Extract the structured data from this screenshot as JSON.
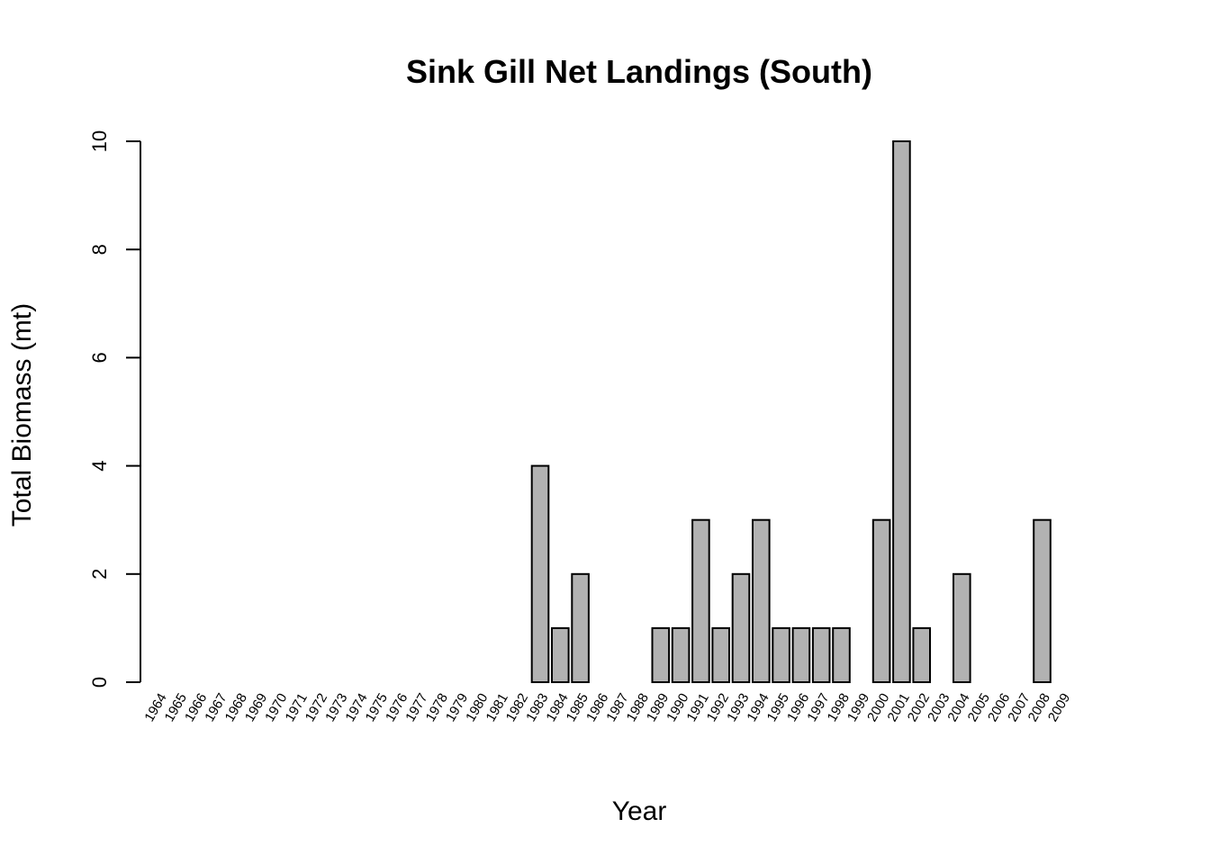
{
  "chart_data": {
    "type": "bar",
    "title": "Sink Gill Net Landings (South)",
    "xlabel": "Year",
    "ylabel": "Total Biomass (mt)",
    "ylim": [
      0,
      10
    ],
    "yticks": [
      0,
      2,
      4,
      6,
      8,
      10
    ],
    "grid": false,
    "bar_color": "#b2b2b2",
    "categories": [
      "1964",
      "1965",
      "1966",
      "1967",
      "1968",
      "1969",
      "1970",
      "1971",
      "1972",
      "1973",
      "1974",
      "1975",
      "1976",
      "1977",
      "1978",
      "1979",
      "1980",
      "1981",
      "1982",
      "1983",
      "1984",
      "1985",
      "1986",
      "1987",
      "1988",
      "1989",
      "1990",
      "1991",
      "1992",
      "1993",
      "1994",
      "1995",
      "1996",
      "1997",
      "1998",
      "1999",
      "2000",
      "2001",
      "2002",
      "2003",
      "2004",
      "2005",
      "2006",
      "2007",
      "2008",
      "2009"
    ],
    "values": [
      0,
      0,
      0,
      0,
      0,
      0,
      0,
      0,
      0,
      0,
      0,
      0,
      0,
      0,
      0,
      0,
      0,
      0,
      0,
      4,
      1,
      2,
      0,
      0,
      0,
      1,
      1,
      3,
      1,
      2,
      3,
      1,
      1,
      1,
      1,
      0,
      3,
      10,
      1,
      0,
      2,
      0,
      0,
      0,
      3,
      0
    ]
  }
}
